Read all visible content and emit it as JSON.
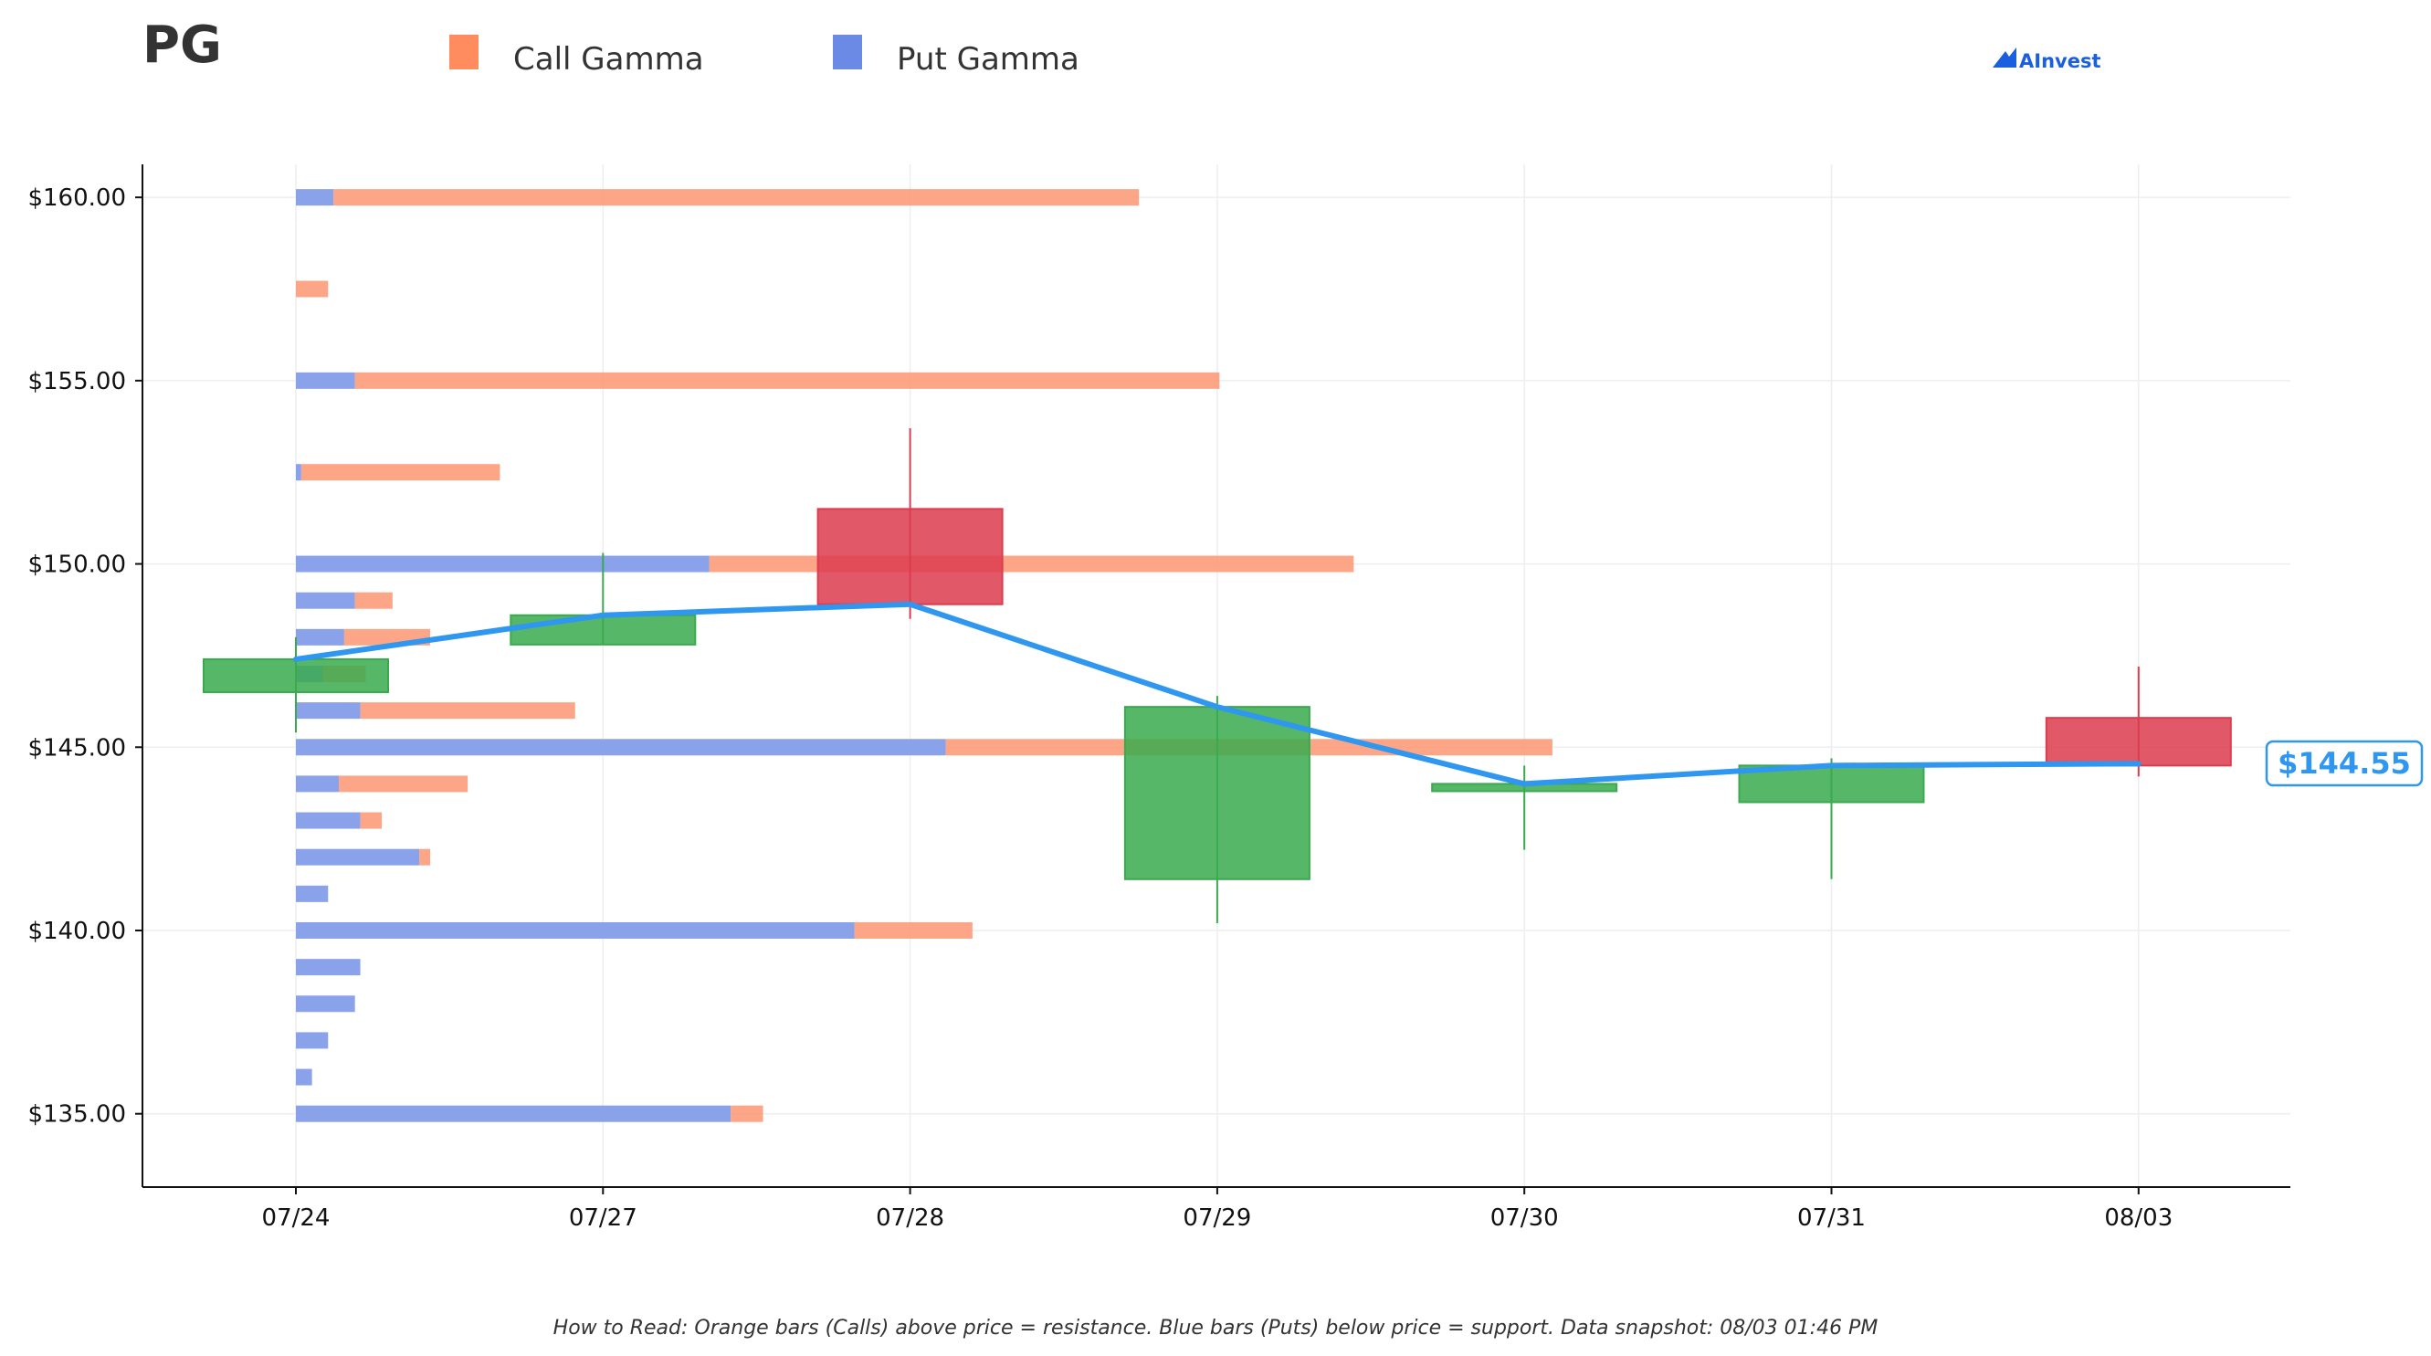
{
  "title": "PG",
  "brand": "AInvest",
  "legend": [
    {
      "label": "Call Gamma",
      "color": "#ff8c5f"
    },
    {
      "label": "Put Gamma",
      "color": "#6a8ae6"
    }
  ],
  "footnote": "How to Read: Orange bars (Calls) above price = resistance. Blue bars (Puts) below price = support. Data snapshot: 08/03 01:46 PM",
  "current_price_label": "$144.55",
  "colors": {
    "call": "#fd9a76",
    "put": "#8aa2ea",
    "up": "#3aaa4e",
    "down": "#dc3c4e",
    "line": "#2f97ef",
    "grid": "#eeeeee"
  },
  "chart_data": {
    "type": "candlestick",
    "dates": [
      "07/24",
      "07/27",
      "07/28",
      "07/29",
      "07/30",
      "07/31",
      "08/03"
    ],
    "y_tick_labels": [
      "$135.00",
      "$140.00",
      "$145.00",
      "$150.00",
      "$155.00",
      "$160.00"
    ],
    "y_ticks": [
      135,
      140,
      145,
      150,
      155,
      160
    ],
    "ylim": [
      133.0,
      160.9
    ],
    "candles": [
      {
        "date": "07/24",
        "open": 146.5,
        "close": 147.4,
        "high": 148.0,
        "low": 145.4
      },
      {
        "date": "07/27",
        "open": 147.8,
        "close": 148.6,
        "high": 150.3,
        "low": 147.8
      },
      {
        "date": "07/28",
        "open": 151.5,
        "close": 148.9,
        "high": 153.7,
        "low": 148.5
      },
      {
        "date": "07/29",
        "open": 141.4,
        "close": 146.1,
        "high": 146.4,
        "low": 140.2
      },
      {
        "date": "07/30",
        "open": 143.8,
        "close": 144.0,
        "high": 144.5,
        "low": 142.2
      },
      {
        "date": "07/31",
        "open": 143.5,
        "close": 144.5,
        "high": 144.7,
        "low": 141.4
      },
      {
        "date": "08/03",
        "open": 145.8,
        "close": 144.5,
        "high": 147.2,
        "low": 144.2
      }
    ],
    "close_line": [
      147.4,
      148.6,
      148.9,
      146.1,
      144.0,
      144.5,
      144.55
    ],
    "gamma_scale_max": 100,
    "gamma": [
      {
        "strike": 160,
        "put": 3.5,
        "call": 75
      },
      {
        "strike": 157.5,
        "put": 0,
        "call": 3
      },
      {
        "strike": 155,
        "put": 5.5,
        "call": 80.5
      },
      {
        "strike": 152.5,
        "put": 0.5,
        "call": 18.5
      },
      {
        "strike": 150,
        "put": 38.5,
        "call": 60
      },
      {
        "strike": 149,
        "put": 5.5,
        "call": 3.5
      },
      {
        "strike": 148,
        "put": 4.5,
        "call": 8
      },
      {
        "strike": 147,
        "put": 2.5,
        "call": 4
      },
      {
        "strike": 146,
        "put": 6,
        "call": 20
      },
      {
        "strike": 145,
        "put": 60.5,
        "call": 56.5
      },
      {
        "strike": 144,
        "put": 4,
        "call": 12
      },
      {
        "strike": 143,
        "put": 6,
        "call": 2
      },
      {
        "strike": 142,
        "put": 11.5,
        "call": 1
      },
      {
        "strike": 141,
        "put": 3,
        "call": 0
      },
      {
        "strike": 140,
        "put": 52,
        "call": 11
      },
      {
        "strike": 139,
        "put": 6,
        "call": 0
      },
      {
        "strike": 138,
        "put": 5.5,
        "call": 0
      },
      {
        "strike": 137,
        "put": 3,
        "call": 0
      },
      {
        "strike": 136,
        "put": 1.5,
        "call": 0
      },
      {
        "strike": 135,
        "put": 40.5,
        "call": 3
      }
    ]
  }
}
